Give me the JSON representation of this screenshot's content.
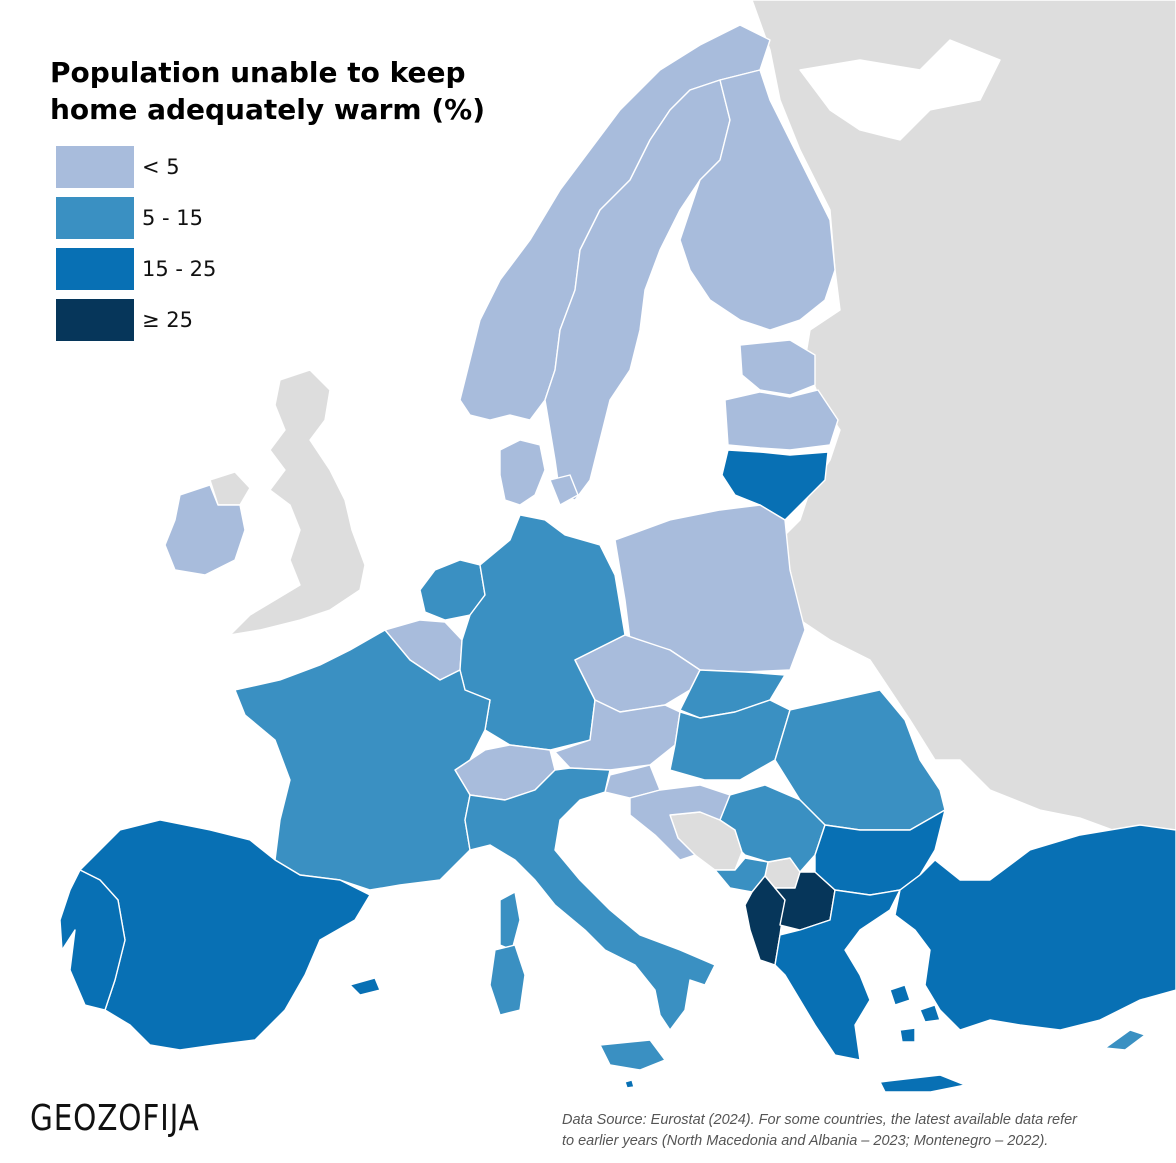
{
  "title": {
    "line1": "Population unable to keep",
    "line2": "home adequately warm (%)"
  },
  "legend": [
    {
      "label": "< 5",
      "color": "#a8bcdc"
    },
    {
      "label": "5 - 15",
      "color": "#3a90c2"
    },
    {
      "label": "15 - 25",
      "color": "#0870b4"
    },
    {
      "label": "≥ 25",
      "color": "#06365a"
    }
  ],
  "no_data_color": "#dddddd",
  "logo": "GEOZOFIJA",
  "source": {
    "line1": "Data Source: Eurostat (2024). For some countries, the latest available data refer",
    "line2": "to earlier years (North Macedonia and Albania – 2023; Montenegro – 2022)."
  },
  "regions": [
    {
      "name": "Norway",
      "class": "< 5"
    },
    {
      "name": "Sweden",
      "class": "< 5"
    },
    {
      "name": "Finland",
      "class": "< 5"
    },
    {
      "name": "Estonia",
      "class": "< 5"
    },
    {
      "name": "Latvia",
      "class": "< 5"
    },
    {
      "name": "Lithuania",
      "class": "15 - 25"
    },
    {
      "name": "Denmark",
      "class": "< 5"
    },
    {
      "name": "Ireland",
      "class": "< 5"
    },
    {
      "name": "Netherlands",
      "class": "5 - 15"
    },
    {
      "name": "Belgium",
      "class": "< 5"
    },
    {
      "name": "Germany",
      "class": "5 - 15"
    },
    {
      "name": "Poland",
      "class": "< 5"
    },
    {
      "name": "Czechia",
      "class": "< 5"
    },
    {
      "name": "Slovakia",
      "class": "5 - 15"
    },
    {
      "name": "Austria",
      "class": "< 5"
    },
    {
      "name": "Switzerland",
      "class": "< 5"
    },
    {
      "name": "France",
      "class": "5 - 15"
    },
    {
      "name": "Spain",
      "class": "15 - 25"
    },
    {
      "name": "Portugal",
      "class": "15 - 25"
    },
    {
      "name": "Italy",
      "class": "5 - 15"
    },
    {
      "name": "Slovenia",
      "class": "< 5"
    },
    {
      "name": "Croatia",
      "class": "< 5"
    },
    {
      "name": "Hungary",
      "class": "5 - 15"
    },
    {
      "name": "Romania",
      "class": "5 - 15"
    },
    {
      "name": "Serbia",
      "class": "5 - 15"
    },
    {
      "name": "Montenegro",
      "class": "5 - 15"
    },
    {
      "name": "Bulgaria",
      "class": "15 - 25"
    },
    {
      "name": "Greece",
      "class": "15 - 25"
    },
    {
      "name": "Turkey",
      "class": "15 - 25"
    },
    {
      "name": "Cyprus",
      "class": "5 - 15"
    },
    {
      "name": "Malta",
      "class": "15 - 25"
    },
    {
      "name": "Albania",
      "class": "≥ 25"
    },
    {
      "name": "North Macedonia",
      "class": "≥ 25"
    }
  ]
}
